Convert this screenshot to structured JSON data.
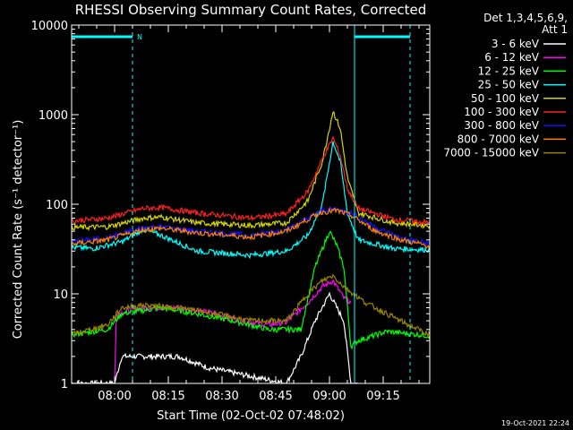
{
  "chart_data": {
    "type": "line",
    "title": "RHESSI Observing Summary Count Rates, Corrected",
    "xlabel": "Start Time (02-Oct-02 07:48:02)",
    "ylabel": "Corrected Count Rate (s⁻¹ detector⁻¹)",
    "yscale": "log",
    "ylim": [
      1,
      10000
    ],
    "xlim_minutes_after_0748": [
      0,
      100
    ],
    "y_ticks": [
      "1",
      "10",
      "100",
      "1000",
      "10000"
    ],
    "x_ticks": [
      {
        "label": "08:00",
        "t": 12
      },
      {
        "label": "08:15",
        "t": 27
      },
      {
        "label": "08:30",
        "t": 42
      },
      {
        "label": "08:45",
        "t": 57
      },
      {
        "label": "09:00",
        "t": 72
      },
      {
        "label": "09:15",
        "t": 87
      }
    ],
    "legend_header": [
      "Det 1,3,4,5,6,9,",
      "Att 1"
    ],
    "legend_position": "right",
    "corner_timestamp": "19-Oct-2021 22:24",
    "night_marker_label": "N",
    "night_bars": [
      {
        "t_start": 0,
        "t_end": 17
      },
      {
        "t_start": 79,
        "t_end": 94.5
      }
    ],
    "markers": [
      {
        "t": 17,
        "style": "dashed"
      },
      {
        "t": 79,
        "style": "solid"
      },
      {
        "t": 94.5,
        "style": "dashed"
      }
    ],
    "series": [
      {
        "name": "3 - 6 keV",
        "color": "#ffffff",
        "points": [
          [
            0,
            1
          ],
          [
            12,
            1
          ],
          [
            14,
            2
          ],
          [
            20,
            2
          ],
          [
            30,
            2
          ],
          [
            38,
            1.5
          ],
          [
            60,
            1
          ],
          [
            64,
            2
          ],
          [
            68,
            5
          ],
          [
            72,
            10
          ],
          [
            76,
            5
          ],
          [
            78,
            1
          ],
          [
            80,
            1
          ]
        ]
      },
      {
        "name": "6 - 12 keV",
        "color": "#ff00ff",
        "points": [
          [
            12,
            1
          ],
          [
            12.5,
            6
          ],
          [
            20,
            7
          ],
          [
            30,
            7
          ],
          [
            40,
            6
          ],
          [
            48,
            5
          ],
          [
            55,
            4.5
          ],
          [
            60,
            4.8
          ],
          [
            66,
            8
          ],
          [
            70,
            12
          ],
          [
            73,
            14
          ],
          [
            76,
            9
          ],
          [
            78,
            8
          ]
        ]
      },
      {
        "name": "12 - 25 keV",
        "color": "#00ff00",
        "points": [
          [
            0,
            3.5
          ],
          [
            10,
            4
          ],
          [
            14,
            6
          ],
          [
            25,
            7
          ],
          [
            35,
            6
          ],
          [
            45,
            5
          ],
          [
            55,
            4
          ],
          [
            64,
            4
          ],
          [
            68,
            20
          ],
          [
            72,
            50
          ],
          [
            74,
            35
          ],
          [
            76,
            20
          ],
          [
            78,
            2.6
          ],
          [
            80,
            3.0
          ],
          [
            88,
            3.8
          ],
          [
            97,
            3.5
          ],
          [
            100,
            3.4
          ]
        ]
      },
      {
        "name": "25 - 50 keV",
        "color": "#00ffff",
        "points": [
          [
            0,
            33
          ],
          [
            6,
            32
          ],
          [
            14,
            38
          ],
          [
            20,
            52
          ],
          [
            25,
            45
          ],
          [
            35,
            30
          ],
          [
            50,
            27
          ],
          [
            60,
            30
          ],
          [
            66,
            45
          ],
          [
            70,
            100
          ],
          [
            73,
            500
          ],
          [
            75,
            300
          ],
          [
            77,
            80
          ],
          [
            80,
            40
          ],
          [
            90,
            32
          ],
          [
            100,
            31
          ]
        ]
      },
      {
        "name": "50 - 100 keV",
        "color": "#d4d400",
        "points": [
          [
            0,
            55
          ],
          [
            10,
            56
          ],
          [
            20,
            70
          ],
          [
            25,
            72
          ],
          [
            35,
            62
          ],
          [
            50,
            58
          ],
          [
            60,
            62
          ],
          [
            66,
            110
          ],
          [
            70,
            300
          ],
          [
            73,
            1100
          ],
          [
            75,
            700
          ],
          [
            77,
            200
          ],
          [
            80,
            80
          ],
          [
            90,
            62
          ],
          [
            100,
            58
          ]
        ]
      },
      {
        "name": "100 - 300 keV",
        "color": "#ff2020",
        "points": [
          [
            0,
            65
          ],
          [
            10,
            70
          ],
          [
            20,
            90
          ],
          [
            25,
            92
          ],
          [
            35,
            80
          ],
          [
            50,
            70
          ],
          [
            60,
            78
          ],
          [
            66,
            140
          ],
          [
            70,
            320
          ],
          [
            73,
            550
          ],
          [
            75,
            350
          ],
          [
            77,
            150
          ],
          [
            80,
            90
          ],
          [
            90,
            68
          ],
          [
            100,
            62
          ]
        ]
      },
      {
        "name": "300 - 800 keV",
        "color": "#1010ff",
        "points": [
          [
            0,
            38
          ],
          [
            10,
            42
          ],
          [
            20,
            55
          ],
          [
            25,
            56
          ],
          [
            35,
            50
          ],
          [
            50,
            45
          ],
          [
            60,
            52
          ],
          [
            66,
            70
          ],
          [
            70,
            85
          ],
          [
            74,
            88
          ],
          [
            78,
            80
          ],
          [
            85,
            55
          ],
          [
            92,
            42
          ],
          [
            100,
            36
          ]
        ]
      },
      {
        "name": "800 - 7000 keV",
        "color": "#ff8000",
        "points": [
          [
            0,
            36
          ],
          [
            10,
            40
          ],
          [
            20,
            52
          ],
          [
            25,
            54
          ],
          [
            35,
            48
          ],
          [
            50,
            43
          ],
          [
            60,
            50
          ],
          [
            66,
            68
          ],
          [
            70,
            82
          ],
          [
            74,
            85
          ],
          [
            78,
            75
          ],
          [
            85,
            50
          ],
          [
            92,
            40
          ],
          [
            100,
            34
          ]
        ]
      },
      {
        "name": "7000 - 15000 keV",
        "color": "#9a8400",
        "points": [
          [
            0,
            3.5
          ],
          [
            10,
            4.5
          ],
          [
            14,
            7
          ],
          [
            20,
            7.5
          ],
          [
            30,
            7
          ],
          [
            40,
            6
          ],
          [
            50,
            5
          ],
          [
            60,
            5
          ],
          [
            66,
            10
          ],
          [
            70,
            14
          ],
          [
            73,
            16
          ],
          [
            76,
            12
          ],
          [
            82,
            8
          ],
          [
            88,
            6
          ],
          [
            94,
            4.5
          ],
          [
            100,
            3.5
          ]
        ]
      }
    ]
  }
}
